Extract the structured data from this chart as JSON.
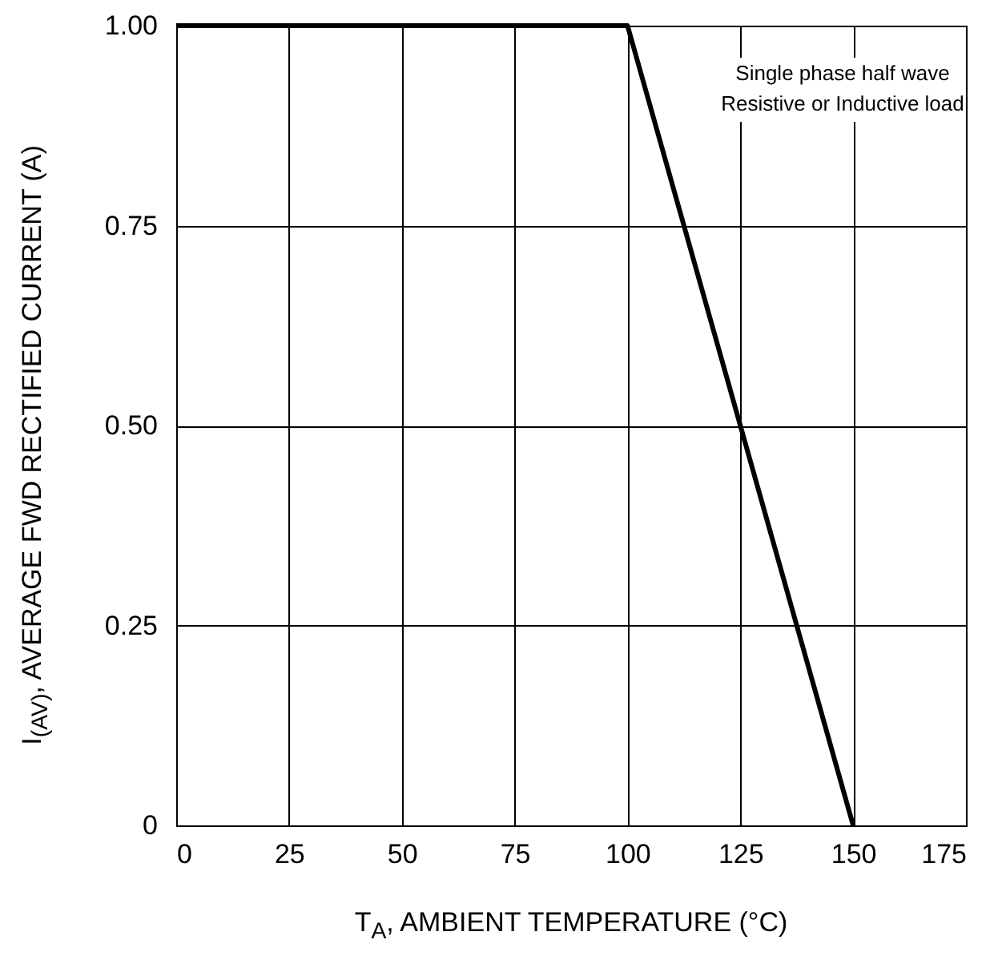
{
  "chart_data": {
    "type": "line",
    "xlabel": "T$_{A}$, AMBIENT TEMPERATURE (°C)",
    "ylabel": "I$_{(AV)}$, AVERAGE FWD RECTIFIED CURRENT (A)",
    "annotations": [
      "Single phase half wave",
      "Resistive or Inductive load"
    ],
    "series": [
      {
        "color": "#000000",
        "x": [
          0,
          100,
          150
        ],
        "values": [
          1,
          1,
          0
        ]
      }
    ],
    "xlim": [
      0,
      175
    ],
    "xticks": [
      0,
      25,
      50,
      75,
      100,
      125,
      150,
      175
    ],
    "ylim": [
      0,
      1
    ],
    "yticks": [
      0,
      {
        "value": 0.25,
        "label": "0.25"
      },
      {
        "value": 0.5,
        "label": "0.50"
      },
      {
        "value": 0.75,
        "label": "0.75"
      },
      {
        "value": 1,
        "label": "1.00"
      }
    ],
    "grid": true,
    "marker": "none",
    "line_style": "solid"
  }
}
